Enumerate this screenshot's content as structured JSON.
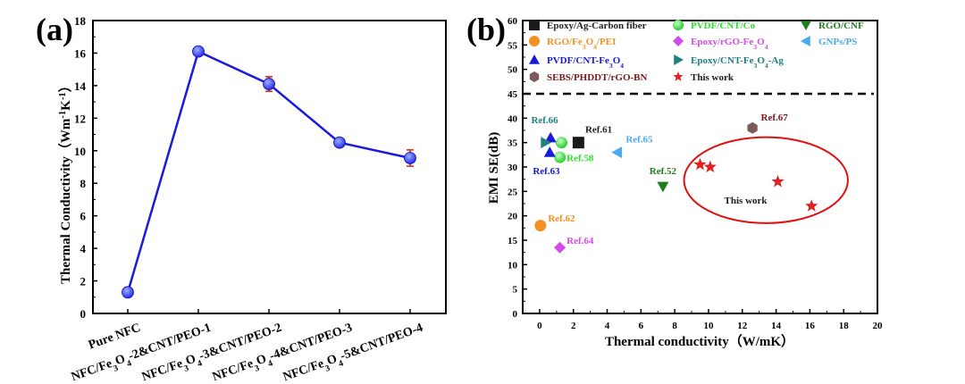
{
  "colors": {
    "line": "#1a1adb",
    "marker": "#2a2af0",
    "errorbar": "#e01b1b",
    "axis": "#000000"
  },
  "chart_data": [
    {
      "panel_label": "(a)",
      "type": "line",
      "categories": [
        "Pure NFC",
        "NFC/Fe3O4-2&CNT/PEO-1",
        "NFC/Fe3O4-3&CNT/PEO-2",
        "NFC/Fe3O4-4&CNT/PEO-3",
        "NFC/Fe3O4-5&CNT/PEO-4"
      ],
      "values": [
        1.3,
        16.1,
        14.1,
        10.5,
        9.55
      ],
      "errors": [
        0.15,
        0.2,
        0.45,
        0.2,
        0.5
      ],
      "ylabel": "Thermal Conductivity（Wm-1K-1）",
      "ylim": [
        0,
        18
      ],
      "yticks": [
        "0",
        "2",
        "4",
        "6",
        "8",
        "10",
        "12",
        "14",
        "16",
        "18"
      ]
    },
    {
      "panel_label": "(b)",
      "type": "scatter",
      "xlabel": "Thermal conductivity（W/mK）",
      "ylabel": "EMI SE(dB)",
      "xlim": [
        -1,
        20
      ],
      "ylim": [
        0,
        60
      ],
      "xticks": [
        "0",
        "2",
        "4",
        "6",
        "8",
        "10",
        "12",
        "14",
        "16",
        "18",
        "20"
      ],
      "yticks": [
        "0",
        "5",
        "10",
        "15",
        "20",
        "25",
        "30",
        "35",
        "40",
        "45",
        "50",
        "55",
        "60"
      ],
      "reference_line_y": 45,
      "legend_placement": "top",
      "series": [
        {
          "name": "Epoxy/Ag-Carbon fiber",
          "marker": "square",
          "color": "#1a1a1a",
          "points": [
            [
              2.3,
              35
            ]
          ],
          "annotation": "Ref.61",
          "label_color": "#222222"
        },
        {
          "name": "PVDF/CNT/Co",
          "marker": "sphere",
          "color": "#2ee02e",
          "points": [
            [
              1.3,
              35
            ],
            [
              1.2,
              32
            ]
          ],
          "annotation": "Ref.58",
          "label_color": "#2ee02e"
        },
        {
          "name": "RGO/CNF",
          "marker": "triangle-down",
          "color": "#1f7f1f",
          "points": [
            [
              7.3,
              26
            ]
          ],
          "annotation": "Ref.52",
          "label_color": "#1f7f1f"
        },
        {
          "name": "RGO/Fe3O4/PEI",
          "marker": "circle",
          "color": "#f39020",
          "points": [
            [
              0.05,
              18
            ]
          ],
          "annotation": "Ref.62",
          "label_color": "#f39020"
        },
        {
          "name": "Epoxy/rGO-Fe3O4",
          "marker": "diamond",
          "color": "#d24ae8",
          "points": [
            [
              1.2,
              13.5
            ]
          ],
          "annotation": "Ref.64",
          "label_color": "#d24ae8"
        },
        {
          "name": "GNPs/PS",
          "marker": "triangle-left",
          "color": "#4aaaf0",
          "points": [
            [
              4.6,
              33
            ]
          ],
          "annotation": "Ref.65",
          "label_color": "#4aaaf0"
        },
        {
          "name": "PVDF/CNT-Fe3O4",
          "marker": "triangle-up",
          "color": "#1a1ad8",
          "points": [
            [
              0.65,
              36
            ],
            [
              0.6,
              33
            ]
          ],
          "annotation": "Ref.63",
          "label_color": "#1a1ad8"
        },
        {
          "name": "Epoxy/CNT-Fe3O4-Ag",
          "marker": "triangle-right",
          "color": "#1f8080",
          "points": [
            [
              0.35,
              35
            ]
          ],
          "annotation": "Ref.66",
          "label_color": "#1f8080"
        },
        {
          "name": "SEBS/PHDDT/rGO-BN",
          "marker": "hexagon",
          "color": "#7a5a5a",
          "points": [
            [
              12.6,
              38
            ]
          ],
          "annotation": "Ref.67",
          "label_color": "#7a1a1a"
        },
        {
          "name": "This work",
          "marker": "star",
          "color": "#e02020",
          "points": [
            [
              9.5,
              30.5
            ],
            [
              10.1,
              30
            ],
            [
              14.1,
              27
            ],
            [
              16.1,
              22
            ]
          ],
          "annotation": "This work",
          "label_color": "#1a1a1a"
        }
      ],
      "highlight_ellipse": {
        "center": [
          13.4,
          27.3
        ],
        "radius": [
          4.85,
          8.8
        ],
        "color": "#e01010"
      }
    }
  ]
}
